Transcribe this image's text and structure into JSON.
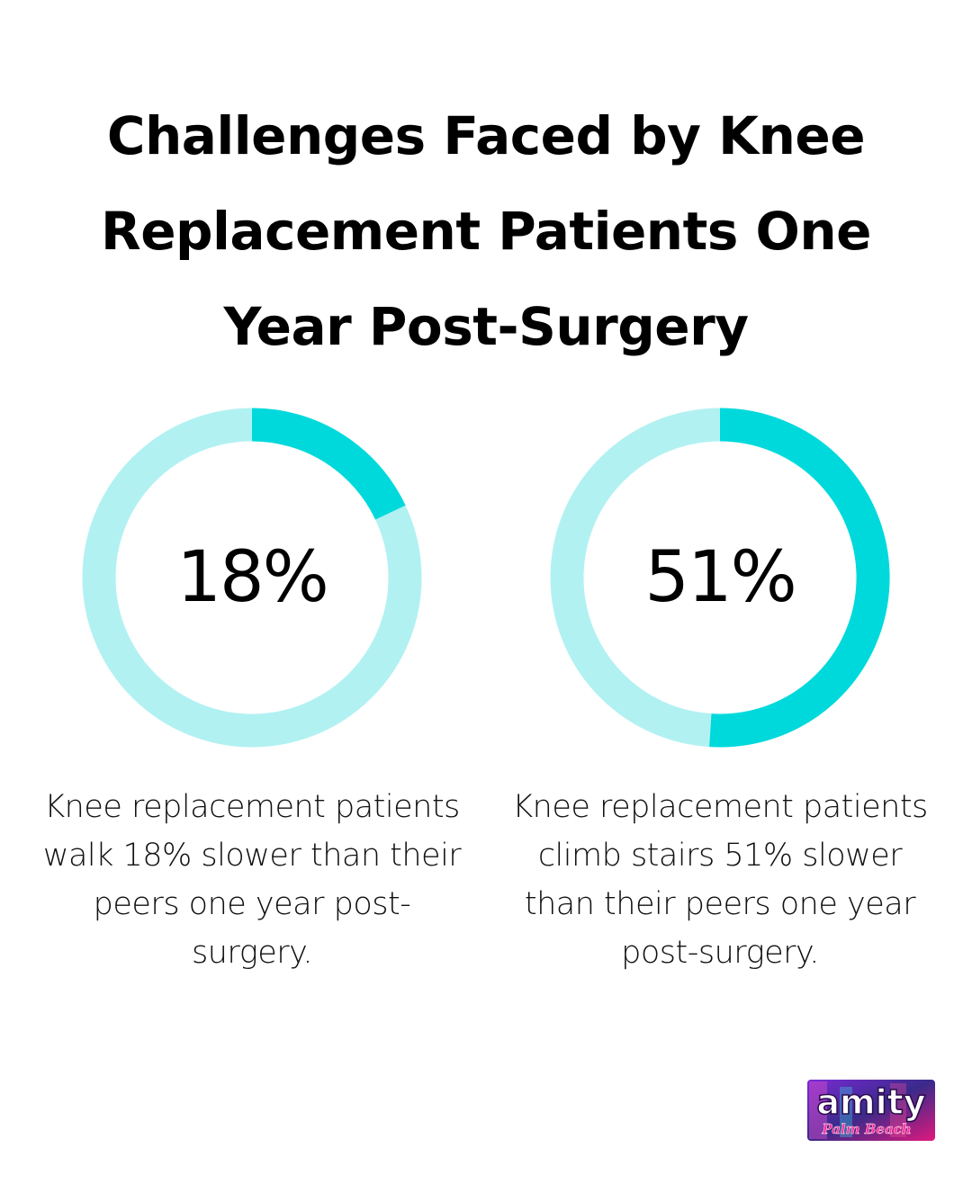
{
  "title": "Challenges Faced by Knee Replacement Patients One Year Post-Surgery",
  "colors": {
    "accent": "#00d9dc",
    "track": "#b2f1f2",
    "text": "#000000"
  },
  "chart_data": [
    {
      "type": "pie",
      "value": 18,
      "value_label": "18%",
      "description": "Knee replacement patients walk 18% slower than their peers one year post-surgery."
    },
    {
      "type": "pie",
      "value": 51,
      "value_label": "51%",
      "description": "Knee replacement patients climb stairs 51% slower than their peers one year post-surgery."
    }
  ],
  "logo": {
    "text": "amity",
    "script": "Palm Beach"
  }
}
